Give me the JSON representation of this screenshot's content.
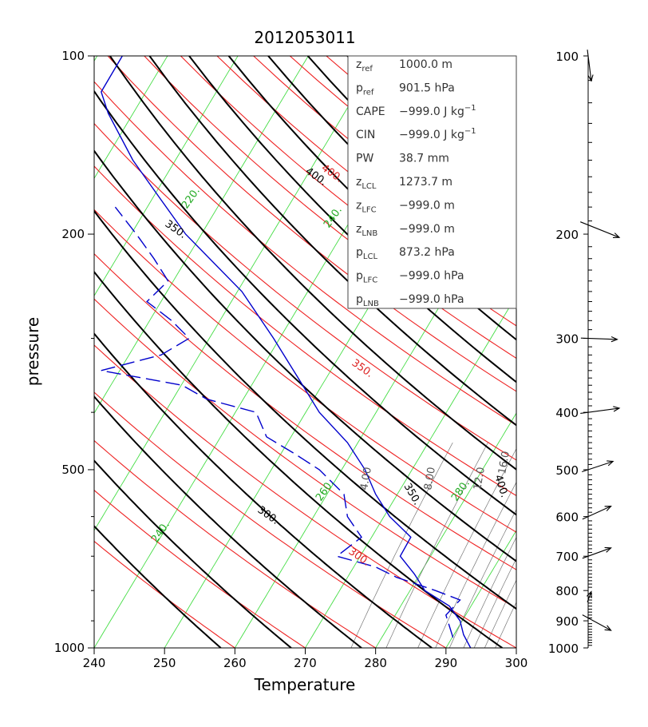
{
  "chart_data": {
    "type": "line",
    "title": "2012053011",
    "xlabel": "Temperature",
    "ylabel": "pressure",
    "xlim": [
      240,
      300
    ],
    "ylim": [
      1000,
      100
    ],
    "y_scale": "log",
    "x_ticks": [
      "240",
      "250",
      "260",
      "270",
      "280",
      "290",
      "300"
    ],
    "y_ticks": [
      "100",
      "200",
      "500",
      "1000"
    ],
    "series": [
      {
        "color": "#0000cc",
        "pressure": [
          1000,
          950,
          900,
          850,
          800,
          750,
          700,
          650,
          600,
          550,
          500,
          450,
          400,
          350,
          300,
          250,
          200,
          175,
          150,
          125,
          115,
          100
        ],
        "temperature": [
          293.5,
          292.5,
          292.0,
          290.5,
          287.0,
          285.5,
          283.5,
          285.0,
          282.0,
          280.0,
          278.5,
          276.0,
          272.0,
          269.0,
          265.5,
          261.0,
          253.0,
          249.5,
          245.5,
          242.0,
          241.0,
          244.0
        ]
      },
      {
        "color": "#0000cc",
        "pressure": [
          960,
          880,
          830,
          800,
          760,
          730,
          700,
          650,
          600,
          550,
          500,
          470,
          440,
          400,
          380,
          360,
          340,
          320,
          300,
          280,
          260,
          240,
          220,
          200,
          180
        ],
        "temperature": [
          291.0,
          290.0,
          292.0,
          288.5,
          283.0,
          280.0,
          274.5,
          278.0,
          276.0,
          275.5,
          272.0,
          268.5,
          264.5,
          263.0,
          256.0,
          252.5,
          241.0,
          249.5,
          253.5,
          251.0,
          247.5,
          250.5,
          248.5,
          246.0,
          243.0
        ]
      }
    ],
    "isotherm_labels": [
      "220.",
      "240.",
      "260.",
      "280.",
      "240."
    ],
    "dry_adiabat_labels": [
      "400.",
      "350.",
      "300."
    ],
    "moist_adiabat_labels": [
      "400.",
      "350.",
      "300."
    ],
    "mixing_ratio_labels": [
      "4.00",
      "8.00",
      "12.0",
      "16.0"
    ],
    "wind_levels": [
      "100",
      "200",
      "300",
      "400",
      "500",
      "600",
      "700",
      "800",
      "900",
      "1000"
    ],
    "wind_barbs": [
      {
        "pressure": 100,
        "u": 1.5,
        "v": -12
      },
      {
        "pressure": 193,
        "u": 15,
        "v": -6
      },
      {
        "pressure": 300,
        "u": 14,
        "v": -0.5
      },
      {
        "pressure": 400,
        "u": 15,
        "v": 2
      },
      {
        "pressure": 500,
        "u": 12,
        "v": 4
      },
      {
        "pressure": 600,
        "u": 11,
        "v": 5
      },
      {
        "pressure": 700,
        "u": 11,
        "v": 4
      },
      {
        "pressure": 830,
        "u": 1.5,
        "v": 4
      },
      {
        "pressure": 890,
        "u": 11,
        "v": -6
      }
    ]
  },
  "info_box": {
    "labels": [
      "z",
      "p",
      "CAPE",
      "CIN",
      "PW",
      "z",
      "z",
      "z",
      "p",
      "p",
      "p"
    ],
    "subscripts": [
      "ref",
      "ref",
      "",
      "",
      "",
      "LCL",
      "LFC",
      "LNB",
      "LCL",
      "LFC",
      "LNB"
    ],
    "values": [
      "1000.0 m",
      "901.5 hPa",
      "−999.0 J kg",
      "−999.0 J kg",
      "38.7 mm",
      "1273.7 m",
      "−999.0 m",
      "−999.0 m",
      "873.2 hPa",
      "−999.0 hPa",
      "−999.0 hPa"
    ],
    "superscripts": [
      "",
      "",
      "−1",
      "−1",
      "",
      "",
      "",
      "",
      "",
      "",
      ""
    ]
  }
}
